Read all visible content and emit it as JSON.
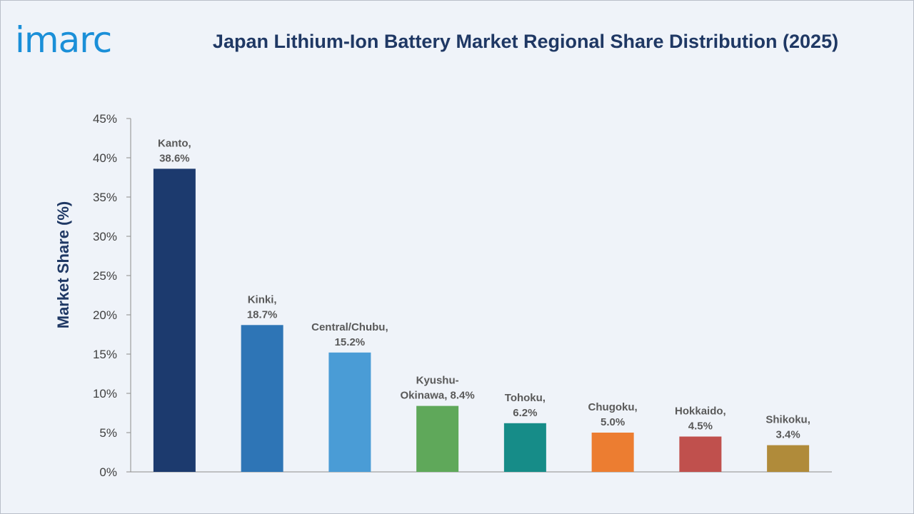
{
  "brand": {
    "logo_text": "imarc"
  },
  "chart_data": {
    "type": "bar",
    "title": "Japan Lithium-Ion Battery Market Regional Share Distribution (2025)",
    "xlabel": "",
    "ylabel": "Market Share (%)",
    "ylim": [
      0,
      45
    ],
    "yticks": [
      0,
      5,
      10,
      15,
      20,
      25,
      30,
      35,
      40,
      45
    ],
    "ytick_labels": [
      "0%",
      "5%",
      "10%",
      "15%",
      "20%",
      "25%",
      "30%",
      "35%",
      "40%",
      "45%"
    ],
    "grid": false,
    "categories": [
      "Kanto",
      "Kinki",
      "Central/Chubu",
      "Kyushu-Okinawa",
      "Tohoku",
      "Chugoku",
      "Hokkaido",
      "Shikoku"
    ],
    "values": [
      38.6,
      18.7,
      15.2,
      8.4,
      6.2,
      5.0,
      4.5,
      3.4
    ],
    "data_labels": [
      [
        "Kanto,",
        "38.6%"
      ],
      [
        "Kinki,",
        "18.7%"
      ],
      [
        "Central/Chubu,",
        "15.2%"
      ],
      [
        "Kyushu-",
        "Okinawa, 8.4%"
      ],
      [
        "Tohoku,",
        "6.2%"
      ],
      [
        "Chugoku,",
        "5.0%"
      ],
      [
        "Hokkaido,",
        "4.5%"
      ],
      [
        "Shikoku,",
        "3.4%"
      ]
    ],
    "colors": [
      "#1c3a6e",
      "#2e75b6",
      "#4a9cd6",
      "#5fa85a",
      "#168c88",
      "#ec7d31",
      "#c0504d",
      "#b08b3a"
    ]
  }
}
